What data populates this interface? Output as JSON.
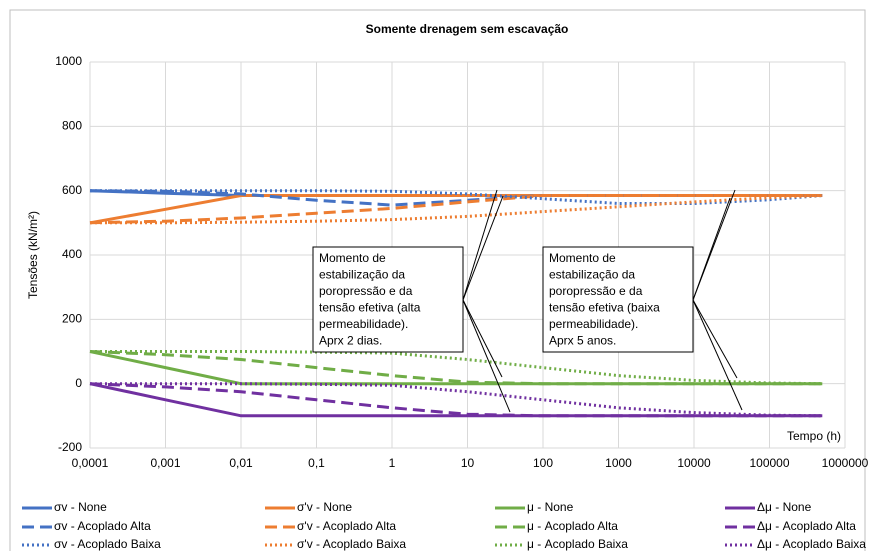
{
  "chart_data": {
    "type": "line",
    "title": "Somente drenagem sem escavação",
    "y_label": "Tensões (kN/m²)",
    "x_label": "Tempo (h)",
    "log_x": true,
    "grid": true,
    "legend_position": "bottom",
    "xlim": [
      0.0001,
      1000000
    ],
    "xticks": [
      {
        "value": 0.0001,
        "label": "0,0001"
      },
      {
        "value": 0.001,
        "label": "0,001"
      },
      {
        "value": 0.01,
        "label": "0,01"
      },
      {
        "value": 0.1,
        "label": "0,1"
      },
      1,
      10,
      100,
      1000,
      10000,
      100000,
      1000000
    ],
    "ylim": [
      -200,
      1000
    ],
    "yticks": [
      -200,
      0,
      200,
      400,
      600,
      800,
      1000
    ],
    "x": [
      0.0001,
      0.001,
      0.01,
      0.1,
      1,
      10,
      100,
      1000,
      10000,
      100000,
      500000
    ],
    "series": [
      {
        "name": "σv  - None",
        "color": "#4472c4",
        "style": "solid",
        "values": [
          600,
          592,
          585,
          585,
          585,
          585,
          585,
          585,
          585,
          585,
          585
        ]
      },
      {
        "name": "σ'v - None",
        "color": "#ed7d31",
        "style": "solid",
        "values": [
          500,
          542,
          585,
          585,
          585,
          585,
          585,
          585,
          585,
          585,
          585
        ]
      },
      {
        "name": "μ - None",
        "color": "#70ad47",
        "style": "solid",
        "values": [
          100,
          50,
          0,
          0,
          0,
          0,
          0,
          0,
          0,
          0,
          0
        ]
      },
      {
        "name": "Δμ - None",
        "color": "#7030a0",
        "style": "solid",
        "values": [
          0,
          -50,
          -100,
          -100,
          -100,
          -100,
          -100,
          -100,
          -100,
          -100,
          -100
        ]
      },
      {
        "name": "σv - Acoplado Alta",
        "color": "#4472c4",
        "style": "dashed",
        "values": [
          600,
          598,
          590,
          570,
          555,
          570,
          585,
          585,
          585,
          585,
          585
        ]
      },
      {
        "name": "σ'v - Acoplado Alta",
        "color": "#ed7d31",
        "style": "dashed",
        "values": [
          500,
          505,
          515,
          530,
          545,
          565,
          585,
          585,
          585,
          585,
          585
        ]
      },
      {
        "name": "μ - Acoplado Alta",
        "color": "#70ad47",
        "style": "dashed",
        "values": [
          100,
          90,
          75,
          50,
          25,
          5,
          0,
          0,
          0,
          0,
          0
        ]
      },
      {
        "name": "Δμ - Acoplado Alta",
        "color": "#7030a0",
        "style": "dashed",
        "values": [
          0,
          -10,
          -25,
          -50,
          -75,
          -95,
          -100,
          -100,
          -100,
          -100,
          -100
        ]
      },
      {
        "name": "σv - Acoplado Baixa",
        "color": "#4472c4",
        "style": "dotted",
        "values": [
          600,
          600,
          600,
          600,
          598,
          590,
          575,
          560,
          560,
          572,
          585
        ]
      },
      {
        "name": "σ'v - Acoplado Baixa",
        "color": "#ed7d31",
        "style": "dotted",
        "values": [
          500,
          500,
          502,
          505,
          510,
          520,
          535,
          550,
          565,
          578,
          585
        ]
      },
      {
        "name": "μ  - Acoplado Baixa",
        "color": "#70ad47",
        "style": "dotted",
        "values": [
          100,
          100,
          100,
          98,
          95,
          75,
          50,
          25,
          10,
          2,
          0
        ]
      },
      {
        "name": "Δμ - Acoplado Baixa",
        "color": "#7030a0",
        "style": "dotted",
        "values": [
          0,
          0,
          0,
          -2,
          -5,
          -25,
          -50,
          -75,
          -90,
          -98,
          -100
        ]
      }
    ],
    "annotations": [
      {
        "lines": [
          "Momento de",
          "estabilização da",
          "poropressão e da",
          "tensão efetiva (alta",
          "permeabilidade).",
          "Aprx 2 dias."
        ]
      },
      {
        "lines": [
          "Momento de",
          "estabilização da",
          "poropressão e da",
          "tensão efetiva (baixa",
          "permeabilidade).",
          "Aprx 5 anos."
        ]
      }
    ]
  }
}
